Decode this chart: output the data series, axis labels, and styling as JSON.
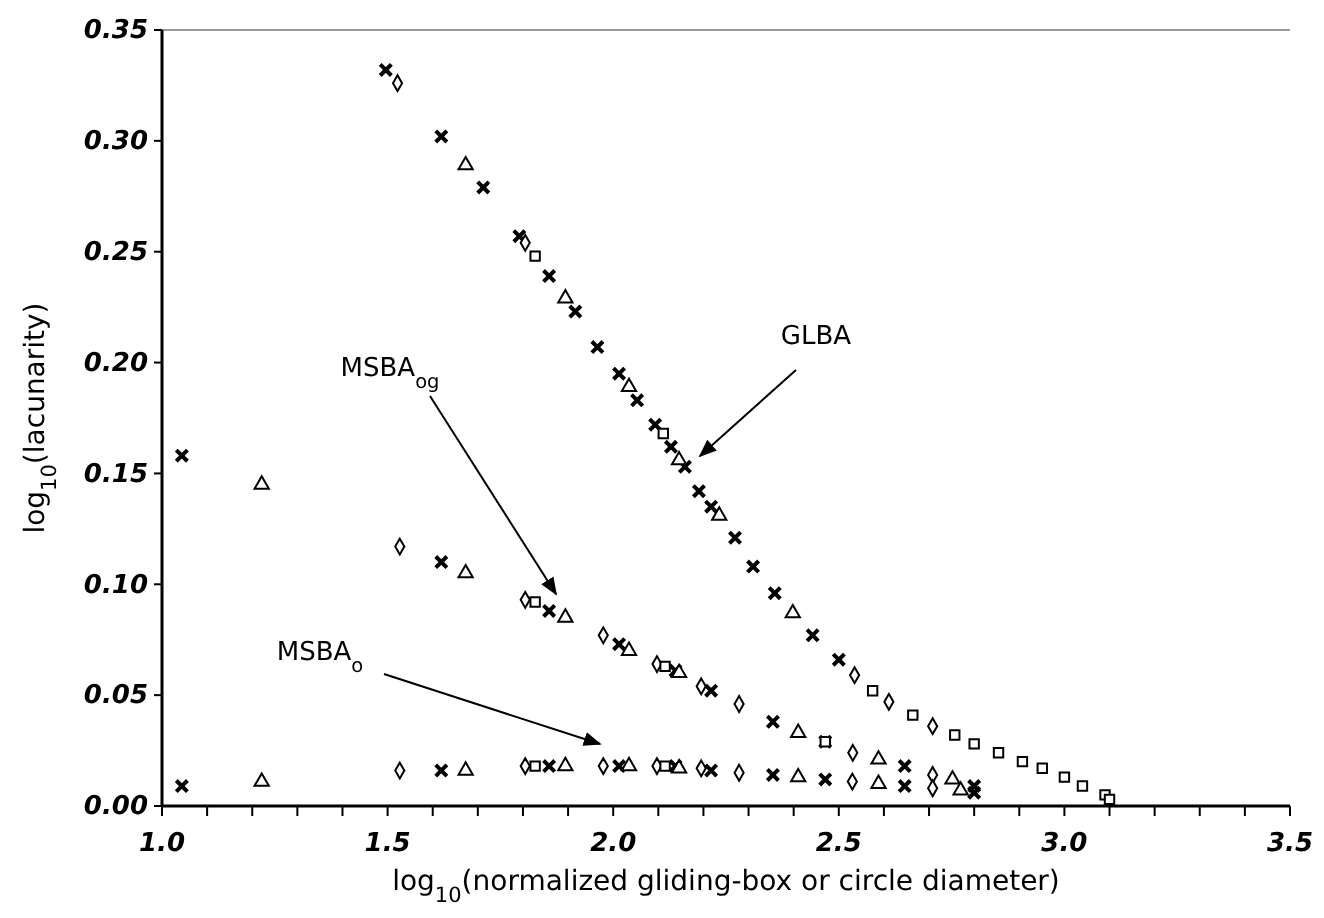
{
  "chart_data": {
    "type": "scatter",
    "xlabel": "log$_{10}$(normalized gliding-box or circle diameter)",
    "ylabel": "log$_{10}$(lacunarity)",
    "xlim": [
      1.0,
      3.5
    ],
    "ylim": [
      0,
      0.35
    ],
    "xticks": [
      {
        "value": 1.0,
        "label": "1.0"
      },
      {
        "value": 1.1,
        "label": null
      },
      {
        "value": 1.2,
        "label": null
      },
      {
        "value": 1.3,
        "label": null
      },
      {
        "value": 1.4,
        "label": null
      },
      {
        "value": 1.5,
        "label": "1.5"
      },
      {
        "value": 1.6,
        "label": null
      },
      {
        "value": 1.7,
        "label": null
      },
      {
        "value": 1.8,
        "label": null
      },
      {
        "value": 1.9,
        "label": null
      },
      {
        "value": 2.0,
        "label": "2.0"
      },
      {
        "value": 2.1,
        "label": null
      },
      {
        "value": 2.2,
        "label": null
      },
      {
        "value": 2.3,
        "label": null
      },
      {
        "value": 2.4,
        "label": null
      },
      {
        "value": 2.5,
        "label": "2.5"
      },
      {
        "value": 2.6,
        "label": null
      },
      {
        "value": 2.7,
        "label": null
      },
      {
        "value": 2.8,
        "label": null
      },
      {
        "value": 2.9,
        "label": null
      },
      {
        "value": 3.0,
        "label": "3.0"
      },
      {
        "value": 3.1,
        "label": null
      },
      {
        "value": 3.2,
        "label": null
      },
      {
        "value": 3.3,
        "label": null
      },
      {
        "value": 3.4,
        "label": null
      },
      {
        "value": 3.5,
        "label": "3.5"
      }
    ],
    "yticks": [
      {
        "value": 0,
        "label": "0.00"
      },
      {
        "value": 0.05,
        "label": "0.05"
      },
      {
        "value": 0.1,
        "label": "0.10"
      },
      {
        "value": 0.15,
        "label": "0.15"
      },
      {
        "value": 0.2,
        "label": "0.20"
      },
      {
        "value": 0.25,
        "label": "0.25"
      },
      {
        "value": 0.3,
        "label": "0.30"
      },
      {
        "value": 0.35,
        "label": "0.35"
      }
    ],
    "grid": false,
    "annotations": [
      "GLBA",
      "MSBA$_{og}$",
      "MSBA$_{o}$"
    ],
    "series": [
      {
        "color": "#000000",
        "marker": "cross",
        "x": [
          1.496,
          1.619,
          1.712,
          1.792,
          1.858,
          1.916,
          1.965,
          2.013,
          2.053,
          2.093,
          2.128,
          2.159,
          2.19,
          2.217,
          2.27,
          2.31,
          2.358,
          2.442,
          2.5,
          1.044,
          1.619,
          1.858,
          2.013,
          2.138,
          2.217,
          2.354,
          2.47,
          2.646,
          2.8,
          1.044,
          1.619,
          1.858,
          2.013,
          2.138,
          2.217,
          2.354,
          2.47,
          2.646,
          2.8
        ],
        "values": [
          0.332,
          0.302,
          0.279,
          0.257,
          0.239,
          0.223,
          0.207,
          0.195,
          0.183,
          0.172,
          0.162,
          0.153,
          0.142,
          0.135,
          0.121,
          0.108,
          0.096,
          0.077,
          0.066,
          0.158,
          0.11,
          0.088,
          0.073,
          0.061,
          0.052,
          0.038,
          0.029,
          0.018,
          0.009,
          0.009,
          0.016,
          0.018,
          0.018,
          0.018,
          0.016,
          0.014,
          0.012,
          0.009,
          0.006
        ]
      },
      {
        "color": "#000000",
        "marker": "triangle",
        "x": [
          1.673,
          1.894,
          2.035,
          2.146,
          2.235,
          2.398,
          1.221,
          1.673,
          1.894,
          2.035,
          2.146,
          2.41,
          2.588,
          2.752,
          1.221,
          1.673,
          1.894,
          2.035,
          2.146,
          2.41,
          2.588,
          2.77
        ],
        "values": [
          0.289,
          0.229,
          0.189,
          0.156,
          0.131,
          0.087,
          0.145,
          0.105,
          0.085,
          0.07,
          0.06,
          0.033,
          0.021,
          0.012,
          0.011,
          0.016,
          0.018,
          0.018,
          0.017,
          0.013,
          0.01,
          0.007
        ]
      },
      {
        "color": "#000000",
        "marker": "diamond",
        "x": [
          1.522,
          1.805,
          2.535,
          2.611,
          2.708,
          1.527,
          1.805,
          1.978,
          2.097,
          2.195,
          2.279,
          2.531,
          2.708,
          1.527,
          1.805,
          1.978,
          2.097,
          2.195,
          2.279,
          2.53,
          2.708
        ],
        "values": [
          0.326,
          0.254,
          0.059,
          0.047,
          0.036,
          0.117,
          0.093,
          0.077,
          0.064,
          0.054,
          0.046,
          0.024,
          0.014,
          0.016,
          0.018,
          0.018,
          0.018,
          0.017,
          0.015,
          0.011,
          0.008
        ]
      },
      {
        "color": "#000000",
        "marker": "square",
        "x": [
          1.827,
          2.111,
          2.575,
          2.664,
          2.757,
          2.8,
          2.854,
          2.907,
          2.951,
          3.0,
          3.04,
          3.09,
          3.1,
          1.827,
          2.115,
          2.47,
          1.827,
          2.115
        ],
        "values": [
          0.248,
          0.168,
          0.052,
          0.041,
          0.032,
          0.028,
          0.024,
          0.02,
          0.017,
          0.013,
          0.009,
          0.005,
          0.003,
          0.092,
          0.063,
          0.029,
          0.018,
          0.018
        ]
      }
    ]
  }
}
